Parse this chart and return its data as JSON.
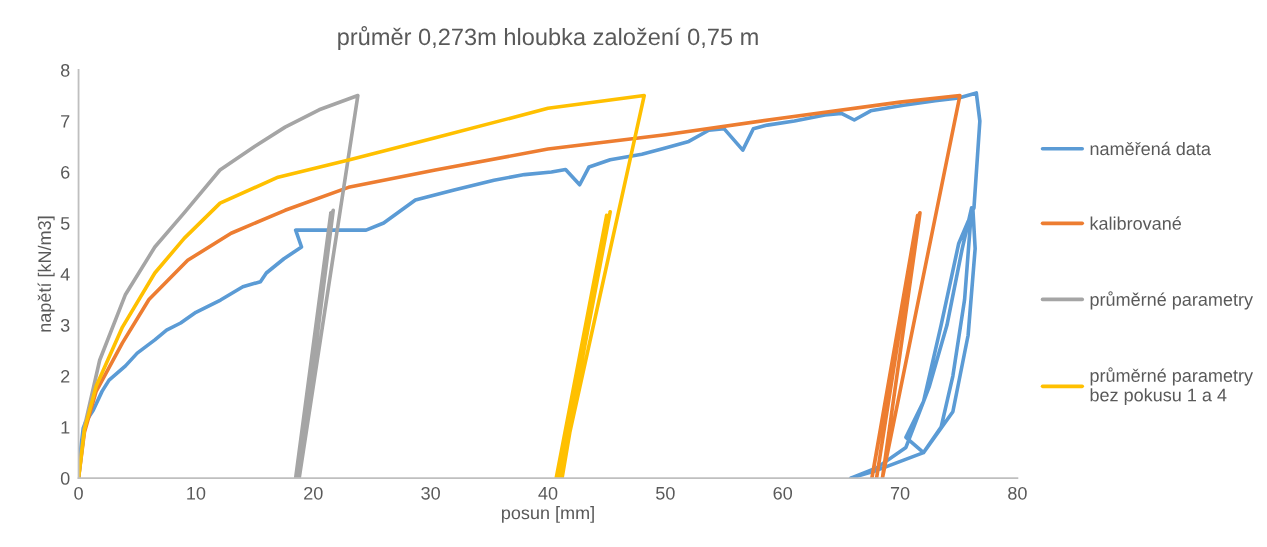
{
  "chart_data": {
    "type": "line",
    "title": "průměr 0,273m hloubka založení 0,75 m",
    "xlabel": "posun [mm]",
    "ylabel": "napětí [kN/m3]",
    "xlim": [
      0,
      80
    ],
    "xticks": [
      0,
      10,
      20,
      30,
      40,
      50,
      60,
      70,
      80
    ],
    "ylim": [
      0,
      8
    ],
    "yticks": [
      0,
      1,
      2,
      3,
      4,
      5,
      6,
      7,
      8
    ],
    "grid": false,
    "legend": "right",
    "marker": "none",
    "line_style": "solid",
    "series": [
      {
        "name": "naměřená data",
        "color": "#5b9bd5",
        "x": [
          0,
          0.2,
          0.4,
          0.6,
          1.25,
          2.0,
          2.6,
          4.0,
          5.0,
          6.5,
          7.5,
          8.7,
          10.0,
          12.1,
          14.0,
          15.5,
          16.0,
          17.5,
          19.0,
          18.5,
          24.5,
          26.0,
          28.7,
          32.0,
          35.4,
          38.0,
          40.3,
          41.5,
          42.7,
          43.5,
          45.3,
          48.0,
          50.0,
          52.0,
          53.7,
          55.0,
          56.6,
          57.5,
          58.7,
          61.0,
          63.6,
          65.0,
          66.1,
          67.5,
          70.3,
          73.0,
          75.0,
          76.5,
          76.8,
          76.3,
          75.0,
          73.5,
          72.0,
          70.5,
          72.0,
          73.5,
          74.5,
          75.5,
          76.1,
          75.3,
          74.0,
          72.5,
          70.5,
          68.0,
          65.8,
          68.0,
          72.0,
          74.5,
          75.8,
          76.4,
          76.2
        ],
        "values": [
          0,
          0.6,
          0.98,
          1.1,
          1.33,
          1.7,
          1.92,
          2.2,
          2.45,
          2.71,
          2.9,
          3.04,
          3.25,
          3.49,
          3.75,
          3.85,
          4.02,
          4.3,
          4.53,
          4.86,
          4.86,
          5.0,
          5.45,
          5.65,
          5.84,
          5.95,
          6.0,
          6.05,
          5.75,
          6.1,
          6.24,
          6.35,
          6.47,
          6.6,
          6.82,
          6.85,
          6.43,
          6.85,
          6.92,
          7.0,
          7.12,
          7.15,
          7.02,
          7.2,
          7.31,
          7.4,
          7.45,
          7.55,
          7.0,
          5.3,
          4.6,
          3.0,
          1.5,
          0.8,
          0.5,
          1.0,
          2.0,
          3.5,
          5.3,
          4.5,
          3.0,
          1.8,
          0.6,
          0.2,
          0.0,
          0.15,
          0.5,
          1.3,
          2.8,
          4.5,
          5.3
        ]
      },
      {
        "name": "kalibrované",
        "color": "#ed7d31",
        "x": [
          0,
          0.5,
          1.5,
          3.74,
          6.0,
          9.3,
          13.0,
          17.6,
          23.0,
          30.4,
          40.0,
          50.0,
          60.0,
          70.0,
          75.1,
          68.5,
          71.7,
          67.6,
          71.5,
          68.0
        ],
        "values": [
          0,
          0.9,
          1.7,
          2.65,
          3.5,
          4.27,
          4.8,
          5.25,
          5.7,
          6.04,
          6.45,
          6.73,
          7.06,
          7.37,
          7.5,
          0,
          5.2,
          0,
          5.15,
          0
        ]
      },
      {
        "name": "průměrné parametry",
        "color": "#a5a5a5",
        "x": [
          0,
          0.5,
          1.8,
          4.0,
          6.5,
          9.0,
          12.05,
          15.0,
          17.6,
          20.5,
          23.8,
          18.8,
          21.7,
          18.5,
          21.5,
          18.7
        ],
        "values": [
          0,
          1.0,
          2.31,
          3.6,
          4.53,
          5.2,
          6.04,
          6.5,
          6.88,
          7.22,
          7.5,
          0,
          5.25,
          0,
          5.2,
          0
        ]
      },
      {
        "name": "průměrné parametry\nbez pokusu 1 a 4",
        "color": "#ffc000",
        "x": [
          0,
          0.5,
          1.5,
          3.74,
          6.5,
          9.0,
          12.06,
          17.0,
          23.1,
          30.4,
          40.0,
          48.2,
          41.0,
          45.3,
          40.7,
          45.0,
          41.2
        ],
        "values": [
          0,
          0.95,
          1.8,
          2.96,
          4.02,
          4.7,
          5.39,
          5.9,
          6.24,
          6.67,
          7.25,
          7.5,
          0,
          5.22,
          0,
          5.15,
          0
        ]
      }
    ]
  }
}
